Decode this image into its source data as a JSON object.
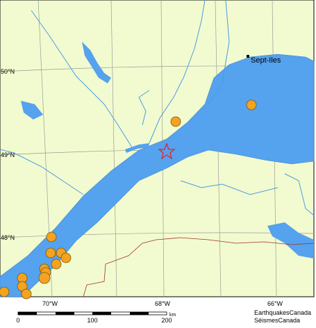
{
  "map": {
    "lat_labels": [
      "50°N",
      "49°N",
      "48°N"
    ],
    "lon_labels": [
      "70°W",
      "68°W",
      "66°W"
    ],
    "city": "Sept-Iles",
    "scale": {
      "ticks": [
        "0",
        "100",
        "200"
      ],
      "unit": "km"
    },
    "credits": [
      "EarthquakesCanada",
      "SéismesCanada"
    ]
  }
}
